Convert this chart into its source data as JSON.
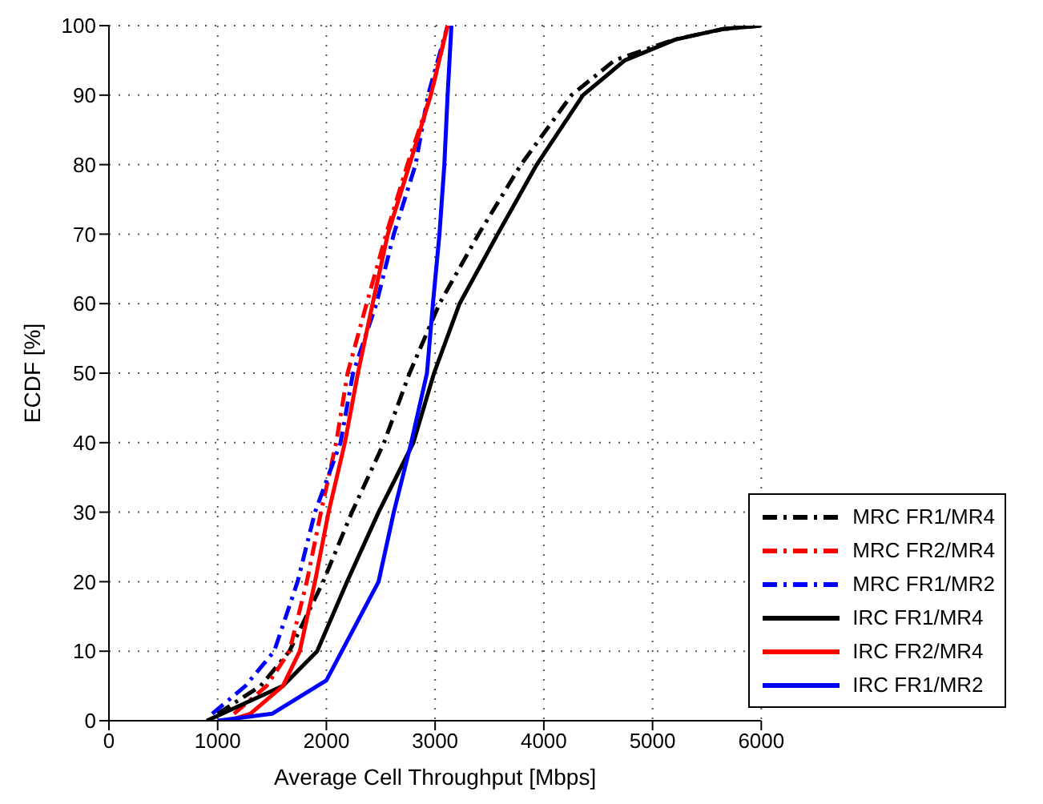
{
  "chart_data": {
    "type": "line",
    "xlabel": "Average Cell Throughput [Mbps]",
    "ylabel": "ECDF [%]",
    "xlim": [
      0,
      6000
    ],
    "ylim": [
      0,
      100
    ],
    "xticks": [
      0,
      1000,
      2000,
      3000,
      4000,
      5000,
      6000
    ],
    "yticks": [
      0,
      10,
      20,
      30,
      40,
      50,
      60,
      70,
      80,
      90,
      100
    ],
    "grid": true,
    "legend": "bottom right",
    "marker": "none",
    "series": [
      {
        "name": "MRC FR1/MR4",
        "color": "#000000",
        "line_style": "dashed",
        "x": [
          1000,
          1395,
          1660,
          1970,
          2235,
          2530,
          2765,
          3040,
          3400,
          3790,
          4255,
          4650,
          5200,
          5650,
          6000
        ],
        "values": [
          1,
          5,
          10,
          20,
          30,
          40,
          50,
          60,
          70,
          80,
          90,
          95,
          98,
          99.5,
          100
        ]
      },
      {
        "name": "MRC FR2/MR4",
        "color": "#ff0000",
        "line_style": "dashed",
        "x": [
          1150,
          1450,
          1660,
          1820,
          1950,
          2090,
          2195,
          2370,
          2550,
          2745,
          2960,
          3115
        ],
        "values": [
          1,
          5,
          10,
          20,
          30,
          40,
          50,
          60,
          70,
          80,
          90,
          100
        ]
      },
      {
        "name": "MRC FR1/MR2",
        "color": "#0000ff",
        "line_style": "dashed",
        "x": [
          950,
          1255,
          1520,
          1735,
          1895,
          2130,
          2245,
          2460,
          2620,
          2820,
          2935,
          3115
        ],
        "values": [
          1,
          5,
          10,
          20,
          30,
          40,
          50,
          60,
          70,
          80,
          90,
          100
        ]
      },
      {
        "name": "IRC FR1/MR4",
        "color": "#000000",
        "line_style": "solid",
        "x": [
          900,
          1600,
          1915,
          2190,
          2480,
          2800,
          2990,
          3225,
          3575,
          3935,
          4360,
          4745,
          5210,
          5640,
          6000
        ],
        "values": [
          0,
          5,
          10,
          20,
          30,
          40,
          50,
          60,
          70,
          80,
          90,
          95,
          98,
          99.5,
          100
        ]
      },
      {
        "name": "IRC FR2/MR4",
        "color": "#ff0000",
        "line_style": "solid",
        "x": [
          1100,
          1300,
          1600,
          1755,
          1895,
          2020,
          2170,
          2290,
          2425,
          2565,
          2765,
          2960,
          3115
        ],
        "values": [
          0,
          1,
          5,
          10,
          20,
          30,
          40,
          50,
          60,
          70,
          80,
          90,
          100
        ]
      },
      {
        "name": "IRC FR1/MR2",
        "color": "#0000ff",
        "line_style": "solid",
        "x": [
          1000,
          1500,
          2000,
          2480,
          2620,
          2780,
          2925,
          2980,
          3040,
          3085,
          3115,
          3150
        ],
        "values": [
          0,
          1,
          5.8,
          20,
          30,
          40,
          50,
          60,
          70,
          80,
          90,
          100
        ]
      }
    ]
  }
}
